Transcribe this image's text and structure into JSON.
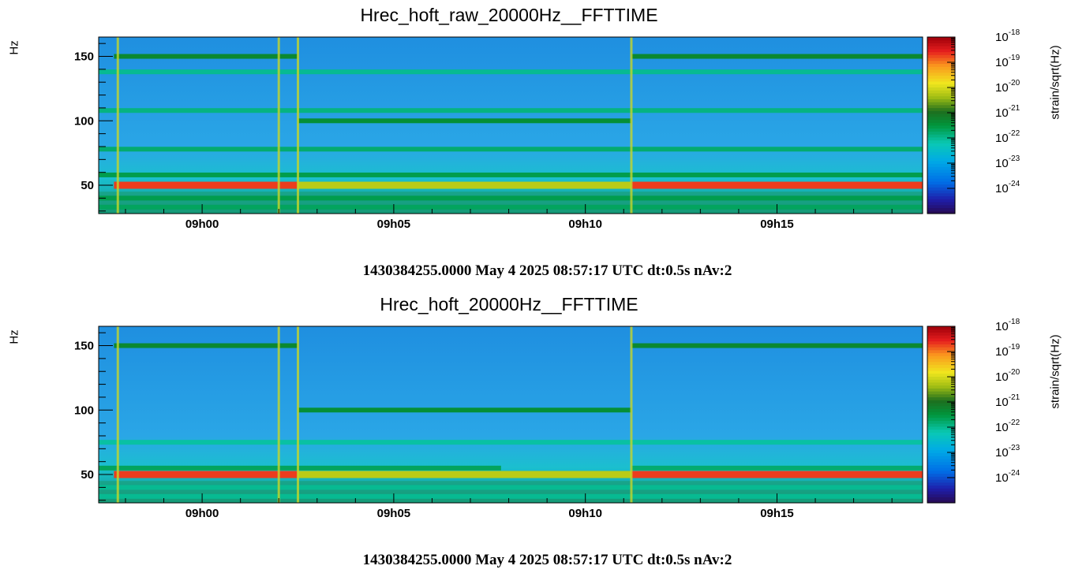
{
  "chart_data": [
    {
      "type": "heatmap",
      "title": "Hrec_hoft_raw_20000Hz__FFTTIME",
      "ylabel": "Hz",
      "zlabel": "strain/sqrt(Hz)",
      "footer": "1430384255.0000 May 4 2025 08:57:17 UTC dt:0.5s nAv:2",
      "x_ticks": [
        "09h00",
        "09h05",
        "09h10",
        "09h15"
      ],
      "x_tick_minutes": [
        0,
        5,
        10,
        15
      ],
      "xlim_minutes": [
        -2.7,
        18.8
      ],
      "y_ticks": [
        50,
        100,
        150
      ],
      "ylim": [
        28,
        165
      ],
      "zlim_log10": [
        -25,
        -18
      ],
      "z_ticks": [
        "10^-18",
        "10^-19",
        "10^-20",
        "10^-21",
        "10^-22",
        "10^-23",
        "10^-24"
      ],
      "lines": [
        {
          "hz": 50,
          "segments": [
            {
              "from": -2.3,
              "to": 2.5,
              "level": -18.7
            },
            {
              "from": 2.5,
              "to": 11.2,
              "level": -20.2
            },
            {
              "from": 11.2,
              "to": 18.8,
              "level": -18.7
            }
          ]
        },
        {
          "hz": 150,
          "segments": [
            {
              "from": -2.3,
              "to": 2.5,
              "level": -21.3
            },
            {
              "from": 11.2,
              "to": 18.8,
              "level": -21.3
            }
          ]
        },
        {
          "hz": 100,
          "segments": [
            {
              "from": 2.5,
              "to": 11.2,
              "level": -21.4
            }
          ]
        },
        {
          "hz": 138,
          "segments": [
            {
              "from": -2.7,
              "to": 18.8,
              "level": -22.0
            }
          ]
        },
        {
          "hz": 108,
          "segments": [
            {
              "from": -2.7,
              "to": 18.8,
              "level": -21.9
            }
          ]
        },
        {
          "hz": 78,
          "segments": [
            {
              "from": -2.7,
              "to": 18.8,
              "level": -21.8
            }
          ]
        },
        {
          "hz": 58,
          "segments": [
            {
              "from": -2.7,
              "to": 18.8,
              "level": -21.6
            }
          ]
        },
        {
          "hz": 40,
          "segments": [
            {
              "from": -2.7,
              "to": 18.8,
              "level": -21.6
            }
          ]
        },
        {
          "hz": 33,
          "segments": [
            {
              "from": -2.7,
              "to": 18.8,
              "level": -21.7
            }
          ]
        }
      ],
      "transients_minutes": [
        -2.2,
        2.0,
        2.5,
        11.2
      ]
    },
    {
      "type": "heatmap",
      "title": "Hrec_hoft_20000Hz__FFTTIME",
      "ylabel": "Hz",
      "zlabel": "strain/sqrt(Hz)",
      "footer": "1430384255.0000 May 4 2025 08:57:17 UTC dt:0.5s nAv:2",
      "x_ticks": [
        "09h00",
        "09h05",
        "09h10",
        "09h15"
      ],
      "x_tick_minutes": [
        0,
        5,
        10,
        15
      ],
      "xlim_minutes": [
        -2.7,
        18.8
      ],
      "y_ticks": [
        50,
        100,
        150
      ],
      "ylim": [
        28,
        165
      ],
      "zlim_log10": [
        -25,
        -18
      ],
      "z_ticks": [
        "10^-18",
        "10^-19",
        "10^-20",
        "10^-21",
        "10^-22",
        "10^-23",
        "10^-24"
      ],
      "lines": [
        {
          "hz": 50,
          "segments": [
            {
              "from": -2.3,
              "to": 2.5,
              "level": -18.7
            },
            {
              "from": 2.5,
              "to": 11.2,
              "level": -20.2
            },
            {
              "from": 11.2,
              "to": 18.8,
              "level": -18.7
            }
          ]
        },
        {
          "hz": 150,
          "segments": [
            {
              "from": -2.3,
              "to": 2.5,
              "level": -21.3
            },
            {
              "from": 11.2,
              "to": 18.8,
              "level": -21.3
            }
          ]
        },
        {
          "hz": 100,
          "segments": [
            {
              "from": 2.5,
              "to": 11.2,
              "level": -21.4
            }
          ]
        },
        {
          "hz": 75,
          "segments": [
            {
              "from": -2.7,
              "to": 18.8,
              "level": -22.1
            }
          ]
        },
        {
          "hz": 55,
          "segments": [
            {
              "from": -2.7,
              "to": 7.8,
              "level": -21.7
            },
            {
              "from": 11.2,
              "to": 18.8,
              "level": -21.8
            }
          ]
        },
        {
          "hz": 40,
          "segments": [
            {
              "from": -2.7,
              "to": 18.8,
              "level": -22.0
            }
          ]
        },
        {
          "hz": 33,
          "segments": [
            {
              "from": -2.7,
              "to": 18.8,
              "level": -22.0
            }
          ]
        }
      ],
      "transients_minutes": [
        -2.2,
        2.0,
        2.5,
        11.2
      ]
    }
  ]
}
